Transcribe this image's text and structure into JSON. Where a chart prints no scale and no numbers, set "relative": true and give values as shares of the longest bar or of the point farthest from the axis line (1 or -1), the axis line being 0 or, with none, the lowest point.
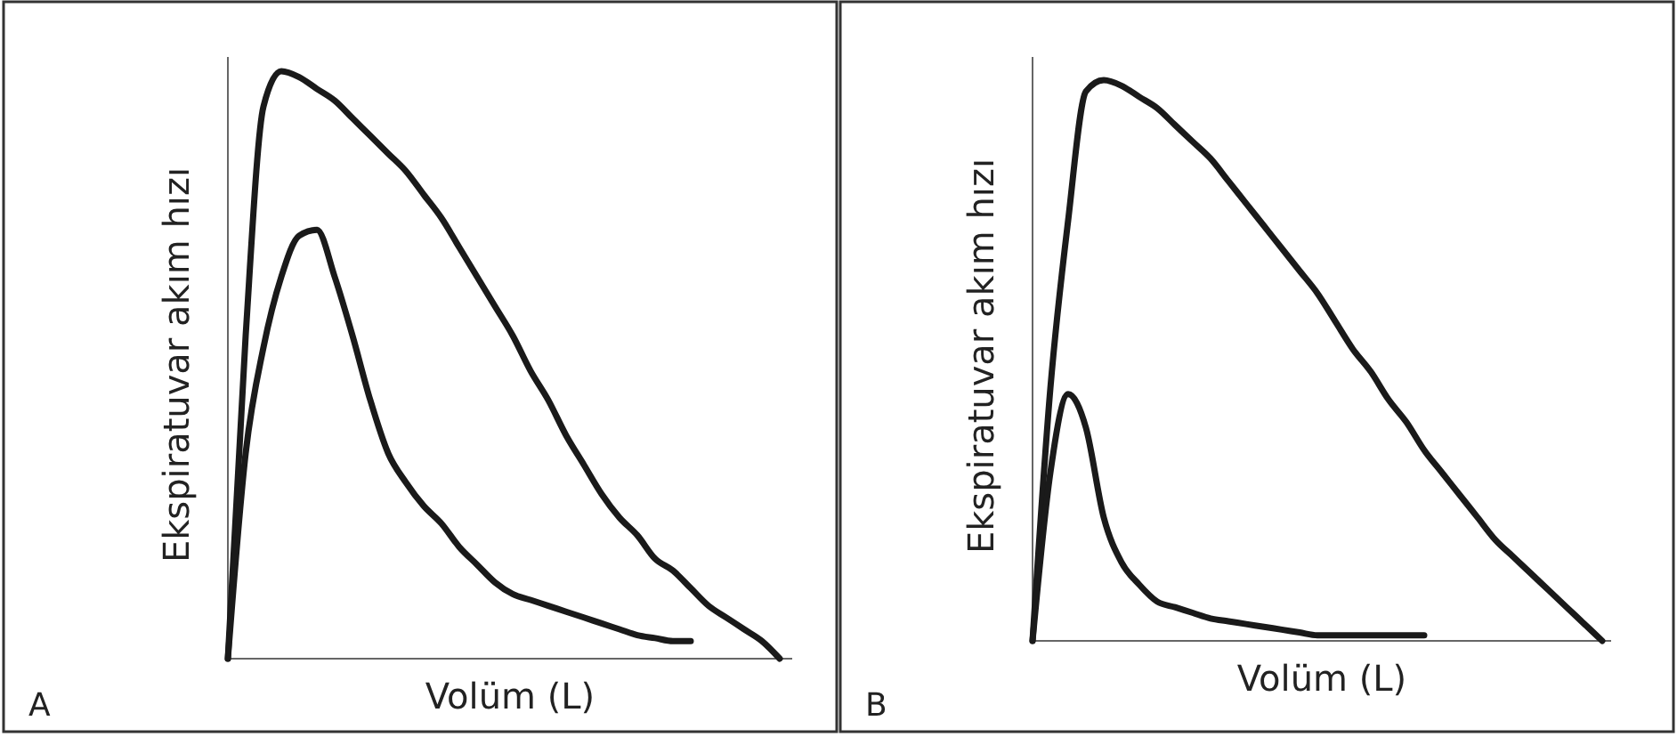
{
  "chart_data": [
    {
      "type": "line",
      "relative": true,
      "xlabel": "Volüm (L)",
      "ylabel": "Ekspiratuvar akım hızı",
      "annotations": [
        "A"
      ],
      "categories": [
        null,
        null,
        null,
        null,
        null,
        null,
        null,
        null,
        null,
        null,
        null,
        null,
        null,
        null,
        null,
        null,
        null,
        null,
        null,
        null,
        null,
        null,
        null,
        null,
        null,
        null,
        null,
        null,
        null,
        null,
        null,
        null
      ],
      "series": [
        {
          "color": "#1a1a1a",
          "values": [
            0,
            0.55,
            0.94,
            1,
            0.99,
            0.97,
            0.95,
            0.92,
            0.89,
            0.86,
            0.83,
            0.79,
            0.75,
            0.7,
            0.65,
            0.6,
            0.55,
            0.49,
            0.44,
            0.38,
            0.33,
            0.28,
            0.24,
            0.21,
            0.17,
            0.15,
            0.12,
            0.09,
            0.07,
            0.05,
            0.03,
            0
          ]
        },
        {
          "color": "#1a1a1a",
          "values": [
            0,
            0.35,
            0.53,
            0.65,
            0.72,
            0.73,
            0.65,
            0.55,
            0.44,
            0.35,
            0.3,
            0.26,
            0.23,
            0.19,
            0.16,
            0.13,
            0.11,
            0.1,
            0.09,
            0.08,
            0.07,
            0.06,
            0.05,
            0.04,
            0.035,
            0.03,
            0.03,
            null,
            null,
            null,
            null,
            null
          ]
        }
      ]
    },
    {
      "type": "line",
      "relative": true,
      "xlabel": "Volüm (L)",
      "ylabel": "Ekspiratuvar akım hızı",
      "annotations": [
        "B"
      ],
      "categories": [
        null,
        null,
        null,
        null,
        null,
        null,
        null,
        null,
        null,
        null,
        null,
        null,
        null,
        null,
        null,
        null,
        null,
        null,
        null,
        null,
        null,
        null,
        null,
        null,
        null,
        null,
        null,
        null,
        null,
        null,
        null,
        null,
        null
      ],
      "series": [
        {
          "color": "#1a1a1a",
          "values": [
            0,
            0.45,
            0.75,
            0.98,
            1,
            0.99,
            0.97,
            0.95,
            0.92,
            0.89,
            0.86,
            0.82,
            0.78,
            0.74,
            0.7,
            0.66,
            0.62,
            0.57,
            0.52,
            0.48,
            0.43,
            0.39,
            0.34,
            0.3,
            0.26,
            0.22,
            0.18,
            0.15,
            0.12,
            0.09,
            0.06,
            0.03,
            0
          ]
        },
        {
          "color": "#1a1a1a",
          "values": [
            0,
            0.3,
            0.44,
            0.38,
            0.22,
            0.14,
            0.1,
            0.07,
            0.06,
            0.05,
            0.04,
            0.035,
            0.03,
            0.025,
            0.02,
            0.015,
            0.01,
            0.01,
            0.01,
            0.01,
            0.01,
            0.01,
            0.01,
            null,
            null,
            null,
            null,
            null,
            null,
            null,
            null,
            null,
            null
          ]
        }
      ]
    }
  ]
}
